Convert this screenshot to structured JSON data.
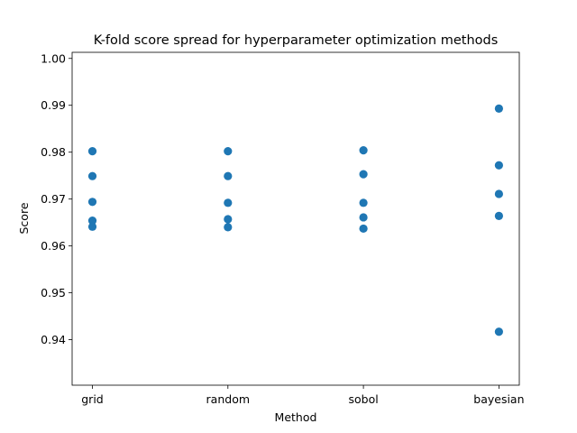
{
  "chart_data": {
    "type": "scatter",
    "title": "K-fold score spread for hyperparameter optimization methods",
    "xlabel": "Method",
    "ylabel": "Score",
    "categories": [
      "grid",
      "random",
      "sobol",
      "bayesian"
    ],
    "series": [
      {
        "values": [
          [
            0.9802,
            0.9749,
            0.9694,
            0.9654,
            0.9641
          ],
          [
            0.9802,
            0.9749,
            0.9692,
            0.9657,
            0.964
          ],
          [
            0.9804,
            0.9753,
            0.9692,
            0.9661,
            0.9637
          ],
          [
            0.9893,
            0.9772,
            0.9711,
            0.9664,
            0.9417
          ]
        ]
      }
    ],
    "yticks": [
      "0.94",
      "0.95",
      "0.96",
      "0.97",
      "0.98",
      "0.99",
      "1.00"
    ],
    "ylim": [
      0.9303,
      1.0013
    ],
    "point_color": "#1f77b4",
    "grid": false,
    "legend": "none"
  }
}
